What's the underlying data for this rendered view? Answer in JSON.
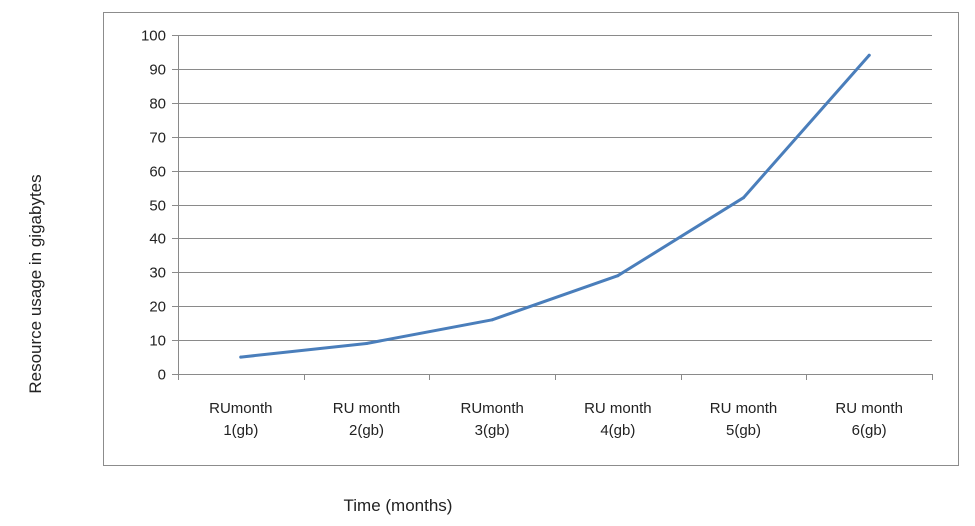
{
  "chart_data": {
    "type": "line",
    "title": "",
    "xlabel": "Time (months)",
    "ylabel": "Resource usage in gigabytes",
    "ylim": [
      0,
      100
    ],
    "y_ticks": [
      0,
      10,
      20,
      30,
      40,
      50,
      60,
      70,
      80,
      90,
      100
    ],
    "categories": [
      [
        "RUmonth",
        "1(gb)"
      ],
      [
        "RU month",
        "2(gb)"
      ],
      [
        "RUmonth",
        "3(gb)"
      ],
      [
        "RU month",
        "4(gb)"
      ],
      [
        "RU month",
        "5(gb)"
      ],
      [
        "RU month",
        "6(gb)"
      ]
    ],
    "series": [
      {
        "values": [
          5,
          9,
          16,
          29,
          52,
          94
        ],
        "color": "#4a7ebb"
      }
    ],
    "grid": true,
    "legend": "none"
  }
}
